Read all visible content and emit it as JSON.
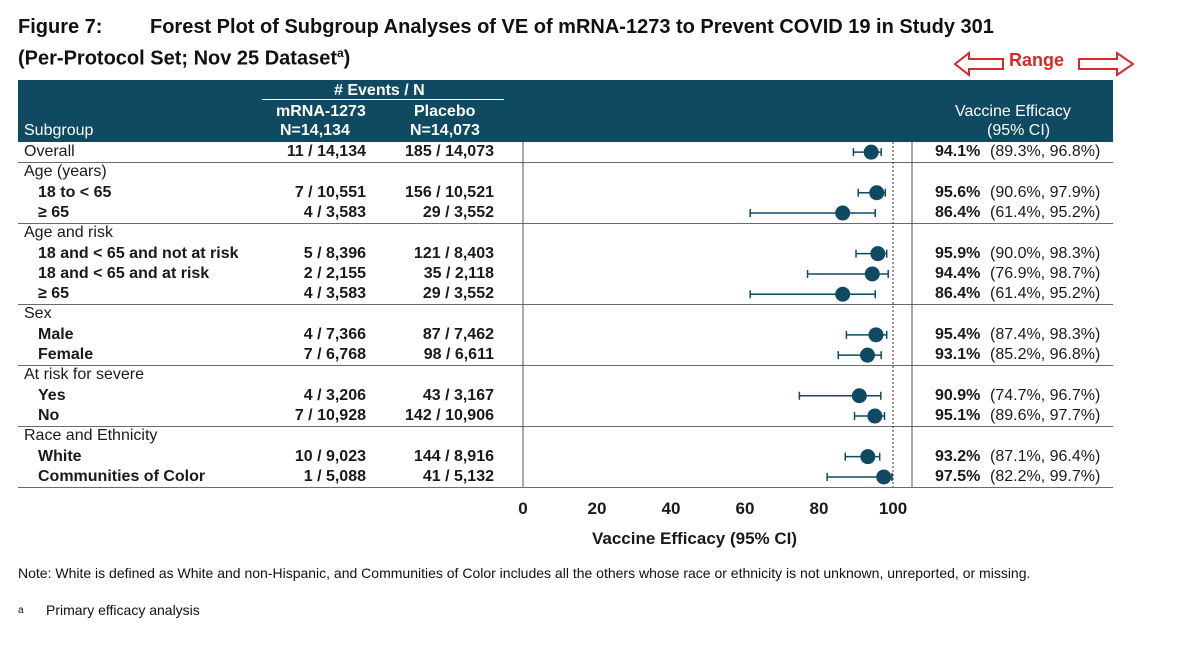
{
  "figure": {
    "number": "Figure 7:",
    "title": "Forest Plot of Subgroup Analyses of VE of mRNA-1273 to Prevent COVID 19 in Study 301",
    "subtitle": "(Per-Protocol Set; Nov 25 Dataset",
    "subtitle_sup": "a",
    "subtitle_end": ")"
  },
  "annotation": {
    "range_label": "Range",
    "color": "#d62a2a"
  },
  "header": {
    "events_label": "# Events / N",
    "col1_name": "mRNA-1273",
    "col1_n": "N=14,134",
    "col2_name": "Placebo",
    "col2_n": "N=14,073",
    "subgroup_label": "Subgroup",
    "ve_label": "Vaccine Efficacy",
    "ci_label": "(95% CI)",
    "band_color": "#0f4a62"
  },
  "rows": [
    {
      "label": "Overall",
      "level": 0,
      "mrna": "11 / 14,134",
      "placebo": "185 / 14,073",
      "ve_text": "94.1%",
      "ci_text": "(89.3%, 96.8%)"
    },
    {
      "label": "Age (years)",
      "level": 0,
      "category": true
    },
    {
      "label": "18 to < 65",
      "level": 1,
      "mrna": "7 / 10,551",
      "placebo": "156 / 10,521",
      "ve_text": "95.6%",
      "ci_text": "(90.6%, 97.9%)"
    },
    {
      "label": "≥ 65",
      "level": 1,
      "mrna": "4 / 3,583",
      "placebo": "29 / 3,552",
      "ve_text": "86.4%",
      "ci_text": "(61.4%, 95.2%)"
    },
    {
      "label": "Age and risk",
      "level": 0,
      "category": true
    },
    {
      "label": "18 and < 65 and not at risk",
      "level": 1,
      "mrna": "5 / 8,396",
      "placebo": "121 / 8,403",
      "ve_text": "95.9%",
      "ci_text": "(90.0%, 98.3%)"
    },
    {
      "label": "18 and < 65 and at risk",
      "level": 1,
      "mrna": "2 / 2,155",
      "placebo": "35 / 2,118",
      "ve_text": "94.4%",
      "ci_text": "(76.9%, 98.7%)"
    },
    {
      "label": "≥ 65",
      "level": 1,
      "mrna": "4 / 3,583",
      "placebo": "29 / 3,552",
      "ve_text": "86.4%",
      "ci_text": "(61.4%, 95.2%)"
    },
    {
      "label": "Sex",
      "level": 0,
      "category": true
    },
    {
      "label": "Male",
      "level": 1,
      "mrna": "4 / 7,366",
      "placebo": "87 / 7,462",
      "ve_text": "95.4%",
      "ci_text": "(87.4%, 98.3%)"
    },
    {
      "label": "Female",
      "level": 1,
      "mrna": "7 / 6,768",
      "placebo": "98 / 6,611",
      "ve_text": "93.1%",
      "ci_text": "(85.2%, 96.8%)"
    },
    {
      "label": "At risk for severe",
      "level": 0,
      "category": true
    },
    {
      "label": "Yes",
      "level": 1,
      "mrna": "4 / 3,206",
      "placebo": "43 / 3,167",
      "ve_text": "90.9%",
      "ci_text": "(74.7%, 96.7%)"
    },
    {
      "label": "No",
      "level": 1,
      "mrna": "7 / 10,928",
      "placebo": "142 / 10,906",
      "ve_text": "95.1%",
      "ci_text": "(89.6%, 97.7%)"
    },
    {
      "label": "Race and Ethnicity",
      "level": 0,
      "category": true
    },
    {
      "label": "White",
      "level": 1,
      "mrna": "10 / 9,023",
      "placebo": "144 / 8,916",
      "ve_text": "93.2%",
      "ci_text": "(87.1%, 96.4%)"
    },
    {
      "label": "Communities of Color",
      "level": 1,
      "mrna": "1 / 5,088",
      "placebo": "41 / 5,132",
      "ve_text": "97.5%",
      "ci_text": "(82.2%, 99.7%)"
    }
  ],
  "chart_data": {
    "type": "scatter",
    "subtype": "forest",
    "xlabel": "Vaccine Efficacy (95% CI)",
    "xlim": [
      0,
      100
    ],
    "xticks": [
      "0",
      "20",
      "40",
      "60",
      "80",
      "100"
    ],
    "reference_line": 100,
    "marker_color": "#0f4a62",
    "points": [
      {
        "row": 0,
        "ve": 94.1,
        "lo": 89.3,
        "hi": 96.8
      },
      {
        "row": 2,
        "ve": 95.6,
        "lo": 90.6,
        "hi": 97.9
      },
      {
        "row": 3,
        "ve": 86.4,
        "lo": 61.4,
        "hi": 95.2
      },
      {
        "row": 5,
        "ve": 95.9,
        "lo": 90.0,
        "hi": 98.3
      },
      {
        "row": 6,
        "ve": 94.4,
        "lo": 76.9,
        "hi": 98.7
      },
      {
        "row": 7,
        "ve": 86.4,
        "lo": 61.4,
        "hi": 95.2
      },
      {
        "row": 9,
        "ve": 95.4,
        "lo": 87.4,
        "hi": 98.3
      },
      {
        "row": 10,
        "ve": 93.1,
        "lo": 85.2,
        "hi": 96.8
      },
      {
        "row": 12,
        "ve": 90.9,
        "lo": 74.7,
        "hi": 96.7
      },
      {
        "row": 13,
        "ve": 95.1,
        "lo": 89.6,
        "hi": 97.7
      },
      {
        "row": 15,
        "ve": 93.2,
        "lo": 87.1,
        "hi": 96.4
      },
      {
        "row": 16,
        "ve": 97.5,
        "lo": 82.2,
        "hi": 99.7
      }
    ]
  },
  "notes": {
    "note": "Note: White is defined as White and non-Hispanic, and Communities of Color includes all the others whose race or ethnicity is not unknown, unreported, or missing.",
    "footnote_mark": "a",
    "footnote": "Primary efficacy analysis"
  }
}
